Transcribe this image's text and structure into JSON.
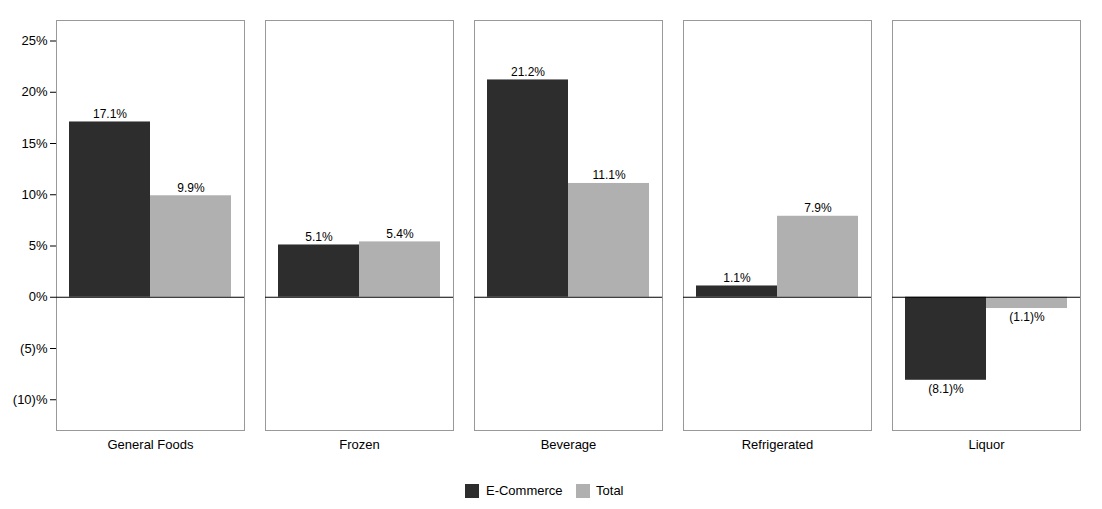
{
  "chart_data": {
    "type": "bar",
    "categories": [
      "General Foods",
      "Frozen",
      "Beverage",
      "Refrigerated",
      "Liquor"
    ],
    "series": [
      {
        "name": "E-Commerce",
        "color": "#2d2d2d",
        "values": [
          17.1,
          5.1,
          21.2,
          1.1,
          -8.1
        ],
        "value_labels": [
          "17.1%",
          "5.1%",
          "21.2%",
          "1.1%",
          "(8.1)%"
        ]
      },
      {
        "name": "Total",
        "color": "#b0b0b0",
        "values": [
          9.9,
          5.4,
          11.1,
          7.9,
          -1.1
        ],
        "value_labels": [
          "9.9%",
          "5.4%",
          "11.1%",
          "7.9%",
          "(1.1)%"
        ]
      }
    ],
    "ylim": [
      -13,
      27
    ],
    "yticks": [
      {
        "value": -10,
        "label": "(10)%"
      },
      {
        "value": -5,
        "label": "(5)%"
      },
      {
        "value": 0,
        "label": "0%"
      },
      {
        "value": 5,
        "label": "5%"
      },
      {
        "value": 10,
        "label": "10%"
      },
      {
        "value": 15,
        "label": "15%"
      },
      {
        "value": 20,
        "label": "20%"
      },
      {
        "value": 25,
        "label": "25%"
      }
    ],
    "grid": false,
    "legend": "bottom",
    "data_labels": true
  }
}
